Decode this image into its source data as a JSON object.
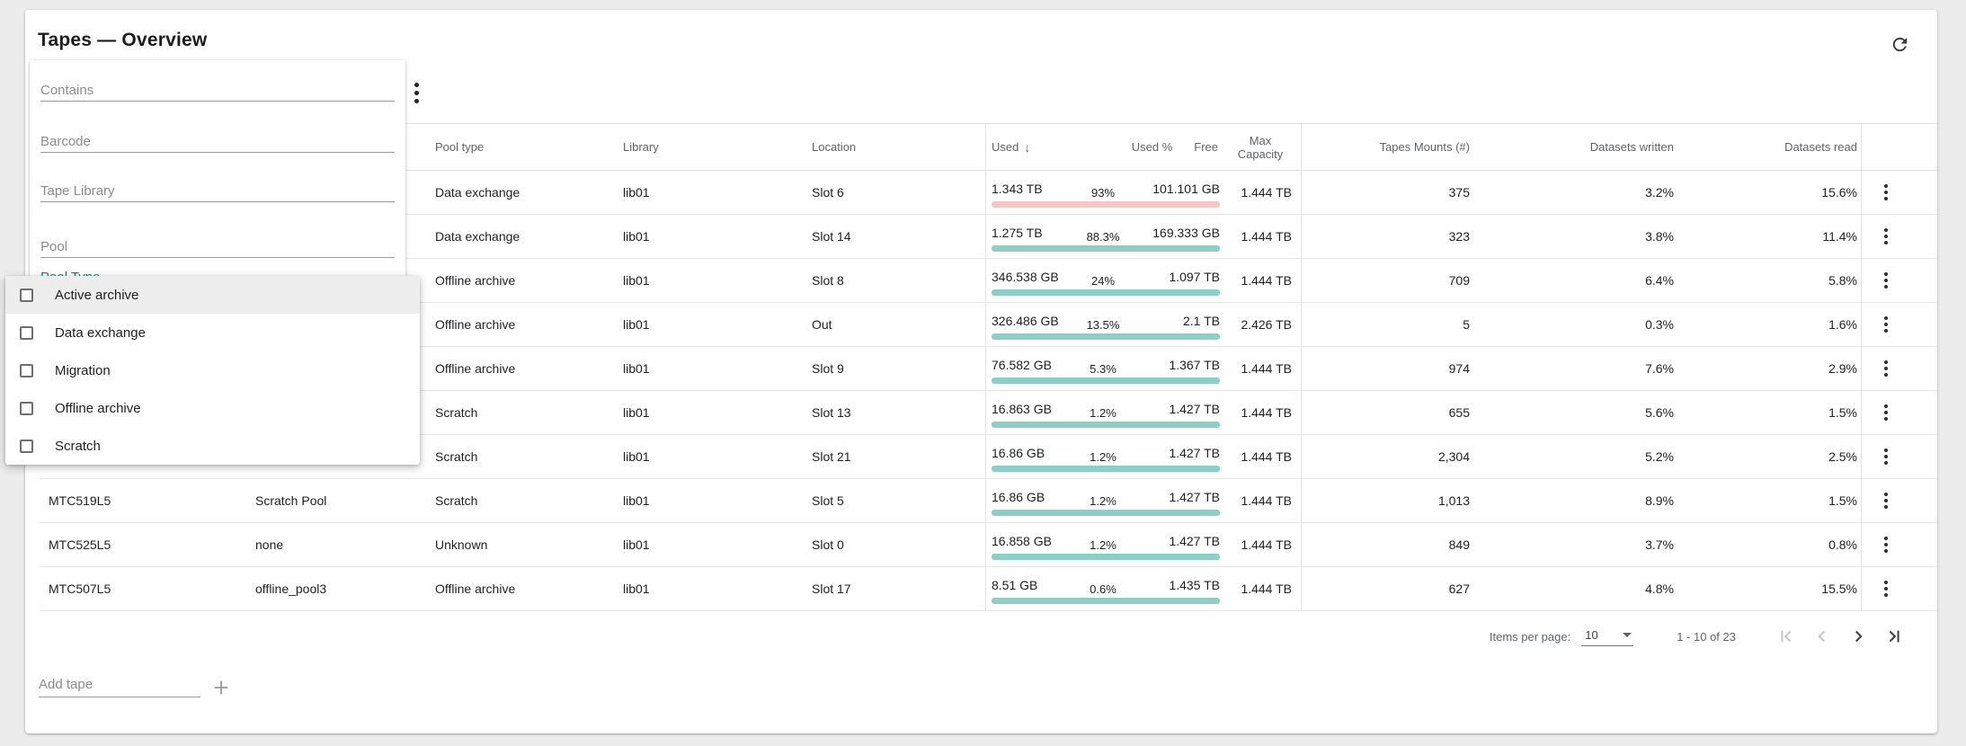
{
  "title": "Tapes — Overview",
  "filters": {
    "contains": "Contains",
    "barcode": "Barcode",
    "tape_library": "Tape Library",
    "pool": "Pool",
    "pool_type": "Pool Type"
  },
  "pool_type_options": [
    {
      "label": "Active archive",
      "checked": false,
      "highlighted": true
    },
    {
      "label": "Data exchange",
      "checked": false,
      "highlighted": false
    },
    {
      "label": "Migration",
      "checked": false,
      "highlighted": false
    },
    {
      "label": "Offline archive",
      "checked": false,
      "highlighted": false
    },
    {
      "label": "Scratch",
      "checked": false,
      "highlighted": false
    }
  ],
  "table": {
    "headers": {
      "pool_type": "Pool type",
      "library": "Library",
      "location": "Location",
      "used": "Used",
      "used_pct": "Used %",
      "free": "Free",
      "max_capacity": "Max Capacity",
      "mounts": "Tapes Mounts (#)",
      "written": "Datasets written",
      "read": "Datasets read"
    },
    "sort": {
      "column": "Used",
      "direction": "desc",
      "icon": "↓"
    },
    "rows": [
      {
        "barcode": "",
        "pool": "",
        "pool_type": "Data exchange",
        "library": "lib01",
        "location": "Slot 6",
        "used": "1.343 TB",
        "used_pct": "93%",
        "pct": 93,
        "free": "101.101 GB",
        "max_capacity": "1.444 TB",
        "mounts": "375",
        "written": "3.2%",
        "read": "15.6%",
        "status": "alert"
      },
      {
        "barcode": "",
        "pool": "",
        "pool_type": "Data exchange",
        "library": "lib01",
        "location": "Slot 14",
        "used": "1.275 TB",
        "used_pct": "88.3%",
        "pct": 88.3,
        "free": "169.333 GB",
        "max_capacity": "1.444 TB",
        "mounts": "323",
        "written": "3.8%",
        "read": "11.4%",
        "status": "normal"
      },
      {
        "barcode": "",
        "pool": "",
        "pool_type": "Offline archive",
        "library": "lib01",
        "location": "Slot 8",
        "used": "346.538 GB",
        "used_pct": "24%",
        "pct": 24,
        "free": "1.097 TB",
        "max_capacity": "1.444 TB",
        "mounts": "709",
        "written": "6.4%",
        "read": "5.8%",
        "status": "normal"
      },
      {
        "barcode": "",
        "pool": "",
        "pool_type": "Offline archive",
        "library": "lib01",
        "location": "Out",
        "used": "326.486 GB",
        "used_pct": "13.5%",
        "pct": 13.5,
        "free": "2.1 TB",
        "max_capacity": "2.426 TB",
        "mounts": "5",
        "written": "0.3%",
        "read": "1.6%",
        "status": "normal"
      },
      {
        "barcode": "",
        "pool": "",
        "pool_type": "Offline archive",
        "library": "lib01",
        "location": "Slot 9",
        "used": "76.582 GB",
        "used_pct": "5.3%",
        "pct": 5.3,
        "free": "1.367 TB",
        "max_capacity": "1.444 TB",
        "mounts": "974",
        "written": "7.6%",
        "read": "2.9%",
        "status": "normal"
      },
      {
        "barcode": "",
        "pool": "",
        "pool_type": "Scratch",
        "library": "lib01",
        "location": "Slot 13",
        "used": "16.863 GB",
        "used_pct": "1.2%",
        "pct": 1.2,
        "free": "1.427 TB",
        "max_capacity": "1.444 TB",
        "mounts": "655",
        "written": "5.6%",
        "read": "1.5%",
        "status": "normal"
      },
      {
        "barcode": "",
        "pool": "",
        "pool_type": "Scratch",
        "library": "lib01",
        "location": "Slot 21",
        "used": "16.86 GB",
        "used_pct": "1.2%",
        "pct": 1.2,
        "free": "1.427 TB",
        "max_capacity": "1.444 TB",
        "mounts": "2,304",
        "written": "5.2%",
        "read": "2.5%",
        "status": "normal"
      },
      {
        "barcode": "MTC519L5",
        "pool": "Scratch Pool",
        "pool_type": "Scratch",
        "library": "lib01",
        "location": "Slot 5",
        "used": "16.86 GB",
        "used_pct": "1.2%",
        "pct": 1.2,
        "free": "1.427 TB",
        "max_capacity": "1.444 TB",
        "mounts": "1,013",
        "written": "8.9%",
        "read": "1.5%",
        "status": "normal"
      },
      {
        "barcode": "MTC525L5",
        "pool": "none",
        "pool_type": "Unknown",
        "library": "lib01",
        "location": "Slot 0",
        "used": "16.858 GB",
        "used_pct": "1.2%",
        "pct": 1.2,
        "free": "1.427 TB",
        "max_capacity": "1.444 TB",
        "mounts": "849",
        "written": "3.7%",
        "read": "0.8%",
        "status": "normal"
      },
      {
        "barcode": "MTC507L5",
        "pool": "offline_pool3",
        "pool_type": "Offline archive",
        "library": "lib01",
        "location": "Slot 17",
        "used": "8.51 GB",
        "used_pct": "0.6%",
        "pct": 0.6,
        "free": "1.435 TB",
        "max_capacity": "1.444 TB",
        "mounts": "627",
        "written": "4.8%",
        "read": "15.5%",
        "status": "normal"
      }
    ]
  },
  "pagination": {
    "items_per_page_label": "Items per page:",
    "items_per_page": "10",
    "range": "1 - 10 of 23"
  },
  "add_tape_placeholder": "Add tape",
  "colors": {
    "accent": "#00897b",
    "bar_alert": "#e8443c",
    "bar_alert_bg": "#f8c7c4",
    "bar_normal": "#10695d",
    "bar_normal_bg": "#8bd0c7"
  }
}
